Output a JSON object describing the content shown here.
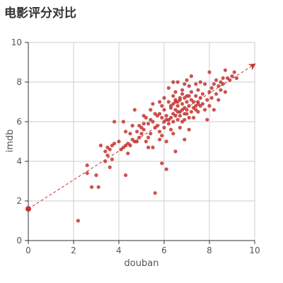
{
  "chart_data": {
    "type": "scatter",
    "title": "电影评分对比",
    "xlabel": "douban",
    "ylabel": "imdb",
    "xlim": [
      0,
      10
    ],
    "ylim": [
      0,
      10
    ],
    "xticks": [
      0,
      2,
      4,
      6,
      8,
      10
    ],
    "yticks": [
      0,
      2,
      4,
      6,
      8,
      10
    ],
    "grid": true,
    "colors": {
      "point": "#c23531",
      "grid": "#cccccc",
      "axis": "#333333"
    },
    "trendline": {
      "type": "dashed-arrow",
      "from": [
        0,
        1.6
      ],
      "to": [
        10,
        8.9
      ]
    },
    "series": [
      {
        "points": [
          [
            2.2,
            1.0
          ],
          [
            2.6,
            3.8
          ],
          [
            2.6,
            3.4
          ],
          [
            2.8,
            2.7
          ],
          [
            3.0,
            3.3
          ],
          [
            3.1,
            2.7
          ],
          [
            3.2,
            4.8
          ],
          [
            3.4,
            4.5
          ],
          [
            3.4,
            4.0
          ],
          [
            3.5,
            4.7
          ],
          [
            3.5,
            4.3
          ],
          [
            3.6,
            4.6
          ],
          [
            3.6,
            3.7
          ],
          [
            3.7,
            4.8
          ],
          [
            3.7,
            4.1
          ],
          [
            3.8,
            4.9
          ],
          [
            3.8,
            6.0
          ],
          [
            4.1,
            4.6
          ],
          [
            4.2,
            4.7
          ],
          [
            4.2,
            6.0
          ],
          [
            4.3,
            3.3
          ],
          [
            4.3,
            4.8
          ],
          [
            4.3,
            5.5
          ],
          [
            4.4,
            4.9
          ],
          [
            4.4,
            4.4
          ],
          [
            4.5,
            5.4
          ],
          [
            4.5,
            4.8
          ],
          [
            4.6,
            5.1
          ],
          [
            4.7,
            6.6
          ],
          [
            4.7,
            5.0
          ],
          [
            4.8,
            5.5
          ],
          [
            4.9,
            5.2
          ],
          [
            4.9,
            5.8
          ],
          [
            5.0,
            5.4
          ],
          [
            5.0,
            5.7
          ],
          [
            5.1,
            5.6
          ],
          [
            5.1,
            6.3
          ],
          [
            5.2,
            6.2
          ],
          [
            5.2,
            5.0
          ],
          [
            5.3,
            5.9
          ],
          [
            5.3,
            4.7
          ],
          [
            5.4,
            6.6
          ],
          [
            5.4,
            6.1
          ],
          [
            5.4,
            5.4
          ],
          [
            5.5,
            6.9
          ],
          [
            5.5,
            6.0
          ],
          [
            5.5,
            4.7
          ],
          [
            5.6,
            2.4
          ],
          [
            5.6,
            5.7
          ],
          [
            5.7,
            6.3
          ],
          [
            5.7,
            5.8
          ],
          [
            5.8,
            6.4
          ],
          [
            5.8,
            5.5
          ],
          [
            5.8,
            5.1
          ],
          [
            5.9,
            3.9
          ],
          [
            5.9,
            5.3
          ],
          [
            5.9,
            6.8
          ],
          [
            6.0,
            6.6
          ],
          [
            6.0,
            5.7
          ],
          [
            6.0,
            7.2
          ],
          [
            6.1,
            3.6
          ],
          [
            6.1,
            6.1
          ],
          [
            6.1,
            6.3
          ],
          [
            6.1,
            5.0
          ],
          [
            6.2,
            6.1
          ],
          [
            6.2,
            5.9
          ],
          [
            6.2,
            7.7
          ],
          [
            6.3,
            6.7
          ],
          [
            6.3,
            6.2
          ],
          [
            6.3,
            5.6
          ],
          [
            6.4,
            7.3
          ],
          [
            6.4,
            6.4
          ],
          [
            6.4,
            8.0
          ],
          [
            6.4,
            6.0
          ],
          [
            6.4,
            5.4
          ],
          [
            6.5,
            7.0
          ],
          [
            6.5,
            6.6
          ],
          [
            6.5,
            6.3
          ],
          [
            6.5,
            4.5
          ],
          [
            6.5,
            7.5
          ],
          [
            6.6,
            6.1
          ],
          [
            6.6,
            6.8
          ],
          [
            6.6,
            6.5
          ],
          [
            6.6,
            8.0
          ],
          [
            6.7,
            7.1
          ],
          [
            6.7,
            6.5
          ],
          [
            6.7,
            7.2
          ],
          [
            6.7,
            5.7
          ],
          [
            6.8,
            6.9
          ],
          [
            6.8,
            7.4
          ],
          [
            6.8,
            7.6
          ],
          [
            6.8,
            6.0
          ],
          [
            6.9,
            7.2
          ],
          [
            6.9,
            6.4
          ],
          [
            6.9,
            7.9
          ],
          [
            6.9,
            5.1
          ],
          [
            7.0,
            6.6
          ],
          [
            7.0,
            7.0
          ],
          [
            7.0,
            8.1
          ],
          [
            7.0,
            7.3
          ],
          [
            7.1,
            6.8
          ],
          [
            7.1,
            6.2
          ],
          [
            7.1,
            5.6
          ],
          [
            7.1,
            7.8
          ],
          [
            7.2,
            7.5
          ],
          [
            7.2,
            6.5
          ],
          [
            7.2,
            8.3
          ],
          [
            7.3,
            7.0
          ],
          [
            7.3,
            6.7
          ],
          [
            7.3,
            6.2
          ],
          [
            7.4,
            7.3
          ],
          [
            7.4,
            6.8
          ],
          [
            7.5,
            6.9
          ],
          [
            7.5,
            7.6
          ],
          [
            7.5,
            6.5
          ],
          [
            7.6,
            7.2
          ],
          [
            7.6,
            8.0
          ],
          [
            7.7,
            7.4
          ],
          [
            7.8,
            6.6
          ],
          [
            7.8,
            7.9
          ],
          [
            7.9,
            7.1
          ],
          [
            7.9,
            6.1
          ],
          [
            8.0,
            7.5
          ],
          [
            8.0,
            6.8
          ],
          [
            8.0,
            8.5
          ],
          [
            8.1,
            7.7
          ],
          [
            8.1,
            7.2
          ],
          [
            8.2,
            6.6
          ],
          [
            8.2,
            7.9
          ],
          [
            8.3,
            7.4
          ],
          [
            8.3,
            8.1
          ],
          [
            8.4,
            7.8
          ],
          [
            8.4,
            7.1
          ],
          [
            8.5,
            8.0
          ],
          [
            8.5,
            7.6
          ],
          [
            8.6,
            8.2
          ],
          [
            8.7,
            7.5
          ],
          [
            8.7,
            8.6
          ],
          [
            8.8,
            8.2
          ],
          [
            8.9,
            8.1
          ],
          [
            9.0,
            8.3
          ],
          [
            9.1,
            8.5
          ],
          [
            9.2,
            8.2
          ],
          [
            7.4,
            6.6
          ],
          [
            6.9,
            6.7
          ],
          [
            6.6,
            7.0
          ],
          [
            7.2,
            7.1
          ],
          [
            6.3,
            6.8
          ],
          [
            7.5,
            7.0
          ],
          [
            5.6,
            6.4
          ],
          [
            5.8,
            7.0
          ],
          [
            6.7,
            6.3
          ],
          [
            7.1,
            7.3
          ],
          [
            6.2,
            7.0
          ],
          [
            7.6,
            6.8
          ],
          [
            6.0,
            6.0
          ],
          [
            5.3,
            5.2
          ],
          [
            4.8,
            5.0
          ],
          [
            6.5,
            7.1
          ],
          [
            6.9,
            6.1
          ],
          [
            7.4,
            7.9
          ],
          [
            8.6,
            7.9
          ],
          [
            7.7,
            6.9
          ],
          [
            6.4,
            6.9
          ],
          [
            5.9,
            6.2
          ],
          [
            5.1,
            5.9
          ],
          [
            4.6,
            5.8
          ],
          [
            4.0,
            5.0
          ],
          [
            7.0,
            6.4
          ],
          [
            6.8,
            6.6
          ],
          [
            0.0,
            1.6
          ]
        ]
      }
    ]
  }
}
